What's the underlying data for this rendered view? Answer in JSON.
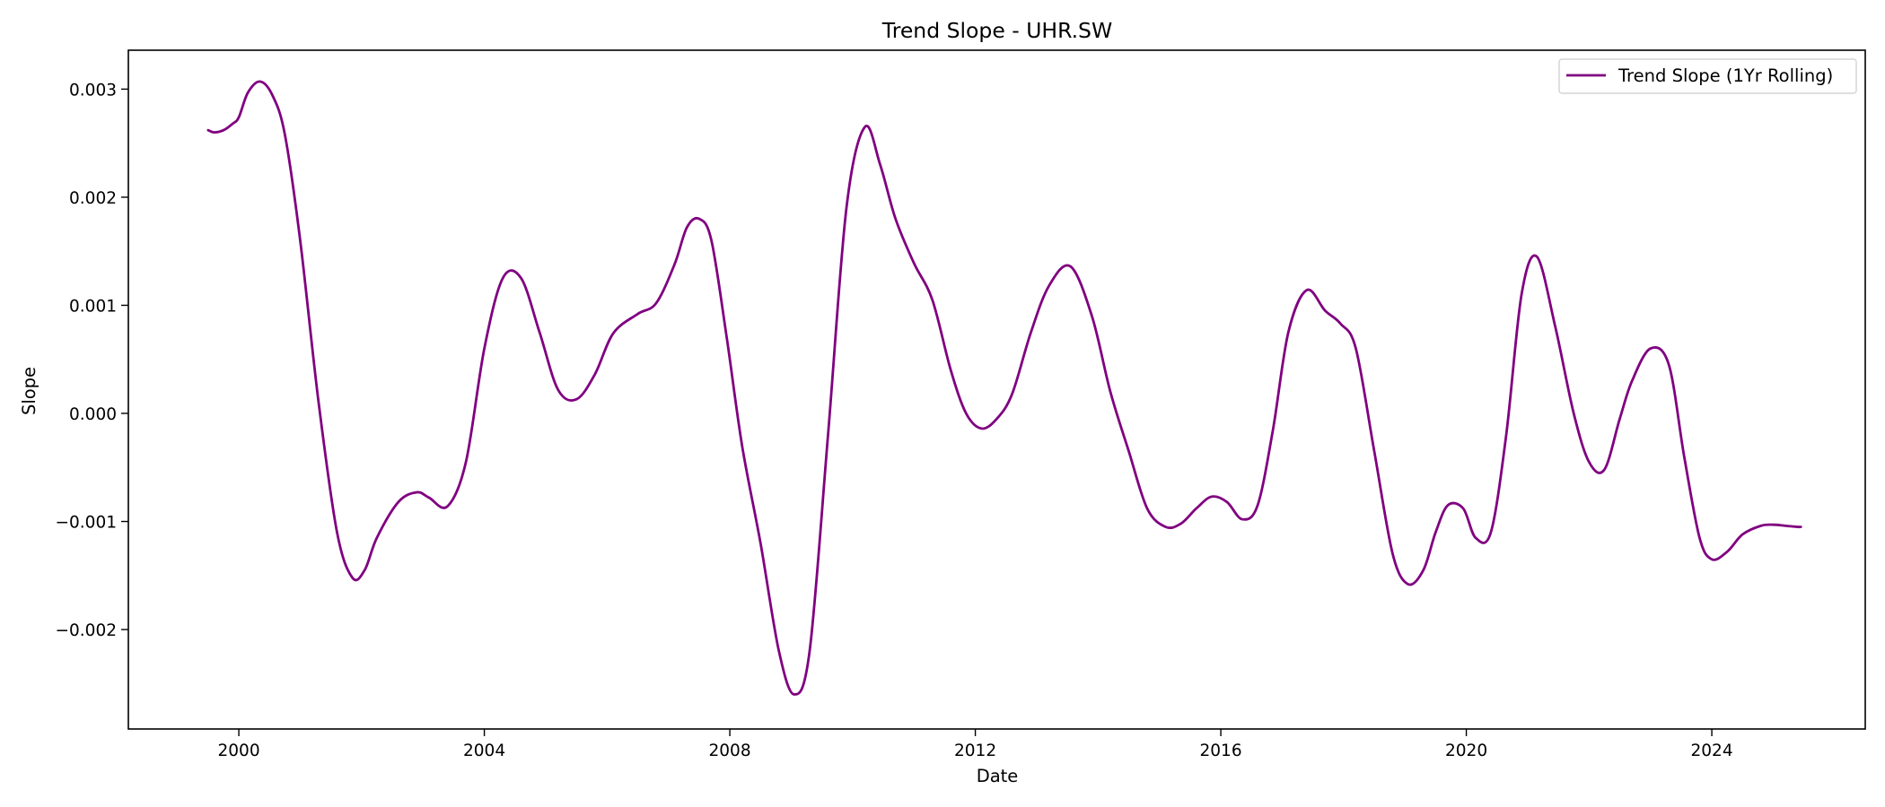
{
  "chart_data": {
    "type": "line",
    "title": "Trend Slope - UHR.SW",
    "xlabel": "Date",
    "ylabel": "Slope",
    "xlim": [
      1998.2,
      2026.5
    ],
    "ylim": [
      -0.00292,
      0.00336
    ],
    "x_ticks": [
      2000,
      2004,
      2008,
      2012,
      2016,
      2020,
      2024
    ],
    "x_tick_labels": [
      "2000",
      "2004",
      "2008",
      "2012",
      "2016",
      "2020",
      "2024"
    ],
    "y_ticks": [
      -0.002,
      -0.001,
      0.0,
      0.001,
      0.002,
      0.003
    ],
    "y_tick_labels": [
      "−0.002",
      "−0.001",
      "0.000",
      "0.001",
      "0.002",
      "0.003"
    ],
    "grid": false,
    "legend_position": "top-right",
    "series": [
      {
        "name": "Trend Slope (1Yr Rolling)",
        "color": "#800080",
        "x": [
          1999.5,
          1999.6,
          1999.75,
          1999.9,
          2000.0,
          2000.15,
          2000.35,
          2000.55,
          2000.75,
          2001.0,
          2001.3,
          2001.6,
          2001.85,
          2002.05,
          2002.25,
          2002.6,
          2002.9,
          2003.1,
          2003.4,
          2003.7,
          2004.0,
          2004.3,
          2004.6,
          2004.9,
          2005.2,
          2005.5,
          2005.8,
          2006.1,
          2006.5,
          2006.8,
          2007.1,
          2007.3,
          2007.5,
          2007.7,
          2007.95,
          2008.2,
          2008.5,
          2008.8,
          2009.05,
          2009.3,
          2009.6,
          2009.9,
          2010.2,
          2010.45,
          2010.7,
          2011.0,
          2011.3,
          2011.6,
          2011.85,
          2012.1,
          2012.35,
          2012.6,
          2012.9,
          2013.2,
          2013.55,
          2013.9,
          2014.2,
          2014.5,
          2014.8,
          2015.1,
          2015.35,
          2015.6,
          2015.85,
          2016.1,
          2016.35,
          2016.6,
          2016.85,
          2017.1,
          2017.4,
          2017.7,
          2017.95,
          2018.2,
          2018.5,
          2018.8,
          2019.05,
          2019.3,
          2019.5,
          2019.7,
          2019.95,
          2020.15,
          2020.4,
          2020.65,
          2020.9,
          2021.15,
          2021.45,
          2021.75,
          2022.0,
          2022.25,
          2022.5,
          2022.7,
          2023.0,
          2023.3,
          2023.55,
          2023.8,
          2024.0,
          2024.25,
          2024.5,
          2024.8,
          2025.0,
          2025.2,
          2025.4,
          2025.45
        ],
        "y": [
          0.00262,
          0.0026,
          0.00262,
          0.00268,
          0.00274,
          0.00297,
          0.00307,
          0.00294,
          0.00258,
          0.0016,
          0.0001,
          -0.0011,
          -0.00152,
          -0.00145,
          -0.00115,
          -0.00082,
          -0.00073,
          -0.00078,
          -0.00086,
          -0.00045,
          0.0006,
          0.00125,
          0.00125,
          0.00075,
          0.00022,
          0.00013,
          0.00036,
          0.00074,
          0.00092,
          0.00102,
          0.00138,
          0.00172,
          0.0018,
          0.0016,
          0.0007,
          -0.0003,
          -0.0012,
          -0.0022,
          -0.0026,
          -0.0022,
          -0.0002,
          0.0019,
          0.00265,
          0.0023,
          0.0018,
          0.00139,
          0.00105,
          0.0004,
          0.0,
          -0.00014,
          -5e-05,
          0.00018,
          0.00074,
          0.00118,
          0.00136,
          0.0009,
          0.0002,
          -0.00035,
          -0.00088,
          -0.00105,
          -0.00102,
          -0.00088,
          -0.00077,
          -0.00082,
          -0.00098,
          -0.00085,
          -0.00015,
          0.00075,
          0.00114,
          0.00095,
          0.00083,
          0.0006,
          -0.00035,
          -0.0013,
          -0.00158,
          -0.00145,
          -0.0011,
          -0.00085,
          -0.00088,
          -0.00115,
          -0.0011,
          -0.0002,
          0.0011,
          0.00145,
          0.0008,
          0.0,
          -0.00045,
          -0.00052,
          -5e-05,
          0.0003,
          0.0006,
          0.00045,
          -0.0004,
          -0.00115,
          -0.00135,
          -0.00128,
          -0.00112,
          -0.00104,
          -0.00103,
          -0.00104,
          -0.00105,
          -0.00105
        ]
      }
    ]
  }
}
